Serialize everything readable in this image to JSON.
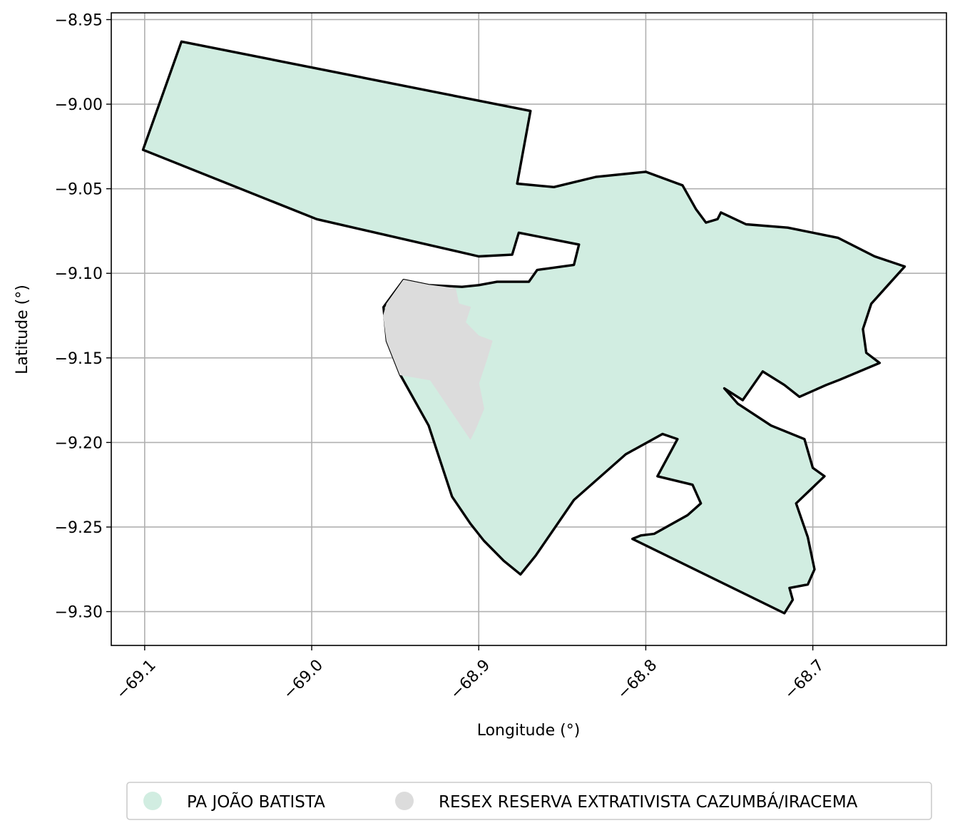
{
  "chart_data": {
    "type": "map",
    "xlabel": "Longitude (°)",
    "ylabel": "Latitude (°)",
    "xlim": [
      -69.12,
      -68.62
    ],
    "ylim": [
      -9.32,
      -8.946
    ],
    "x_ticks": [
      -69.1,
      -69.0,
      -68.9,
      -68.8,
      -68.7
    ],
    "x_tick_labels": [
      "−69.1",
      "−69.0",
      "−68.9",
      "−68.8",
      "−68.7"
    ],
    "y_ticks": [
      -8.95,
      -9.0,
      -9.05,
      -9.1,
      -9.15,
      -9.2,
      -9.25,
      -9.3
    ],
    "y_tick_labels": [
      "−8.95",
      "−9.00",
      "−9.05",
      "−9.10",
      "−9.15",
      "−9.20",
      "−9.25",
      "−9.30"
    ],
    "grid": true,
    "legend_position": "bottom-center",
    "legend": [
      {
        "label": "PA JOÃO BATISTA",
        "color": "#d1ede1"
      },
      {
        "label": "RESEX RESERVA EXTRATIVISTA CAZUMBÁ/IRACEMA",
        "color": "#dcdcdc"
      }
    ],
    "polygons": [
      {
        "name": "PA JOÃO BATISTA",
        "fill": "#d1ede1",
        "boundary_color": "#000000",
        "coordinates": [
          [
            -69.101,
            -9.027
          ],
          [
            -69.078,
            -8.963
          ],
          [
            -68.869,
            -9.004
          ],
          [
            -68.877,
            -9.047
          ],
          [
            -68.855,
            -9.049
          ],
          [
            -68.83,
            -9.043
          ],
          [
            -68.8,
            -9.04
          ],
          [
            -68.778,
            -9.048
          ],
          [
            -68.77,
            -9.062
          ],
          [
            -68.764,
            -9.07
          ],
          [
            -68.757,
            -9.068
          ],
          [
            -68.755,
            -9.064
          ],
          [
            -68.74,
            -9.071
          ],
          [
            -68.715,
            -9.073
          ],
          [
            -68.685,
            -9.079
          ],
          [
            -68.663,
            -9.09
          ],
          [
            -68.645,
            -9.096
          ],
          [
            -68.655,
            -9.107
          ],
          [
            -68.665,
            -9.118
          ],
          [
            -68.67,
            -9.133
          ],
          [
            -68.668,
            -9.147
          ],
          [
            -68.66,
            -9.153
          ],
          [
            -68.684,
            -9.163
          ],
          [
            -68.692,
            -9.166
          ],
          [
            -68.708,
            -9.173
          ],
          [
            -68.717,
            -9.166
          ],
          [
            -68.73,
            -9.158
          ],
          [
            -68.742,
            -9.175
          ],
          [
            -68.753,
            -9.168
          ],
          [
            -68.745,
            -9.177
          ],
          [
            -68.725,
            -9.19
          ],
          [
            -68.705,
            -9.198
          ],
          [
            -68.7,
            -9.215
          ],
          [
            -68.693,
            -9.22
          ],
          [
            -68.71,
            -9.236
          ],
          [
            -68.703,
            -9.256
          ],
          [
            -68.699,
            -9.275
          ],
          [
            -68.703,
            -9.284
          ],
          [
            -68.714,
            -9.286
          ],
          [
            -68.712,
            -9.293
          ],
          [
            -68.717,
            -9.301
          ],
          [
            -68.808,
            -9.257
          ],
          [
            -68.803,
            -9.255
          ],
          [
            -68.795,
            -9.254
          ],
          [
            -68.775,
            -9.243
          ],
          [
            -68.767,
            -9.236
          ],
          [
            -68.772,
            -9.225
          ],
          [
            -68.793,
            -9.22
          ],
          [
            -68.781,
            -9.198
          ],
          [
            -68.79,
            -9.195
          ],
          [
            -68.812,
            -9.207
          ],
          [
            -68.843,
            -9.234
          ],
          [
            -68.866,
            -9.267
          ],
          [
            -68.875,
            -9.278
          ],
          [
            -68.885,
            -9.27
          ],
          [
            -68.897,
            -9.258
          ],
          [
            -68.905,
            -9.248
          ],
          [
            -68.916,
            -9.232
          ],
          [
            -68.925,
            -9.205
          ],
          [
            -68.93,
            -9.19
          ],
          [
            -68.947,
            -9.16
          ],
          [
            -68.955,
            -9.14
          ],
          [
            -68.957,
            -9.12
          ],
          [
            -68.945,
            -9.104
          ],
          [
            -68.93,
            -9.107
          ],
          [
            -68.91,
            -9.108
          ],
          [
            -68.9,
            -9.107
          ],
          [
            -68.889,
            -9.105
          ],
          [
            -68.87,
            -9.105
          ],
          [
            -68.865,
            -9.098
          ],
          [
            -68.843,
            -9.095
          ],
          [
            -68.84,
            -9.083
          ],
          [
            -68.876,
            -9.076
          ],
          [
            -68.88,
            -9.089
          ],
          [
            -68.9,
            -9.09
          ],
          [
            -68.997,
            -9.068
          ],
          [
            -69.101,
            -9.027
          ]
        ]
      },
      {
        "name": "RESEX RESERVA EXTRATIVISTA CAZUMBÁ/IRACEMA",
        "fill": "#dcdcdc",
        "boundary_color": "#dcdcdc",
        "coordinates": [
          [
            -68.955,
            -9.118
          ],
          [
            -68.945,
            -9.104
          ],
          [
            -68.93,
            -9.107
          ],
          [
            -68.914,
            -9.109
          ],
          [
            -68.912,
            -9.118
          ],
          [
            -68.905,
            -9.12
          ],
          [
            -68.908,
            -9.129
          ],
          [
            -68.9,
            -9.137
          ],
          [
            -68.892,
            -9.14
          ],
          [
            -68.895,
            -9.15
          ],
          [
            -68.9,
            -9.165
          ],
          [
            -68.897,
            -9.18
          ],
          [
            -68.902,
            -9.192
          ],
          [
            -68.905,
            -9.198
          ],
          [
            -68.929,
            -9.163
          ],
          [
            -68.947,
            -9.16
          ],
          [
            -68.955,
            -9.14
          ],
          [
            -68.957,
            -9.125
          ],
          [
            -68.955,
            -9.118
          ]
        ]
      }
    ]
  }
}
